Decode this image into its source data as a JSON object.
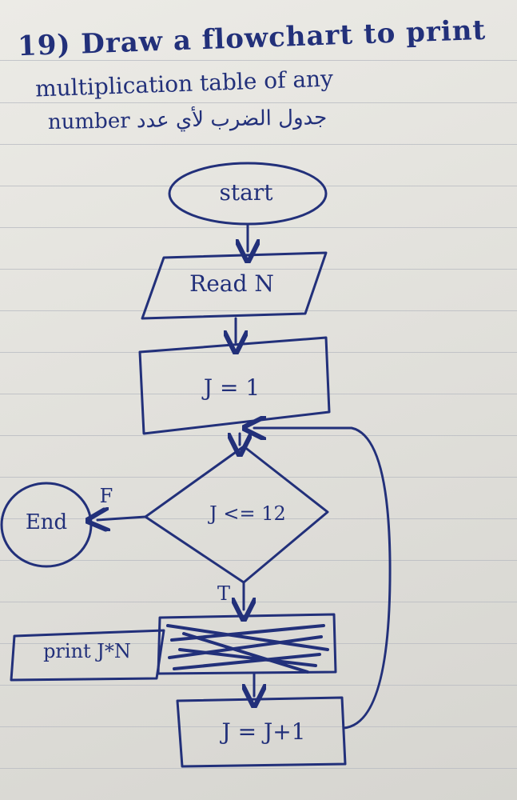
{
  "page": {
    "heading_line1": "19) Draw a flowchart to print",
    "heading_line2": "multiplication table of any",
    "heading_line3": "number  جدول الضرب لأي عدد"
  },
  "flowchart": {
    "start": "start",
    "input": "Read N",
    "init": "J = 1",
    "decision": "J <= 12",
    "false_label": "F",
    "true_label": "T",
    "end": "End",
    "output": "print J*N",
    "increment": "J = J+1"
  },
  "colors": {
    "ink": "#22307a",
    "paper": "#e6e5e0",
    "rule": "#b9bcc2"
  }
}
